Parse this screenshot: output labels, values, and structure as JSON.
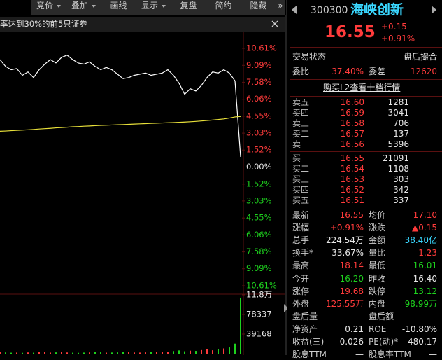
{
  "toolbar": {
    "items": [
      "竞价",
      "叠加",
      "画线",
      "显示",
      "复盘",
      "简约",
      "隐藏"
    ]
  },
  "notice": {
    "text": "率达到30%的前5只证券"
  },
  "chart": {
    "price": {
      "type": "line",
      "ylim": [
        -10.61,
        10.61
      ],
      "yticks": [
        {
          "value": 10.61,
          "label": "10.61%"
        },
        {
          "value": 9.09,
          "label": "9.09%"
        },
        {
          "value": 7.58,
          "label": "7.58%"
        },
        {
          "value": 6.06,
          "label": "6.06%"
        },
        {
          "value": 4.55,
          "label": "4.55%"
        },
        {
          "value": 3.03,
          "label": "3.03%"
        },
        {
          "value": 1.52,
          "label": "1.52%"
        },
        {
          "value": 0,
          "label": "0.00%"
        },
        {
          "value": -1.52,
          "label": "1.52%"
        },
        {
          "value": -3.03,
          "label": "3.03%"
        },
        {
          "value": -4.55,
          "label": "4.55%"
        },
        {
          "value": -6.06,
          "label": "6.06%"
        },
        {
          "value": -7.58,
          "label": "7.58%"
        },
        {
          "value": -9.09,
          "label": "9.09%"
        },
        {
          "value": -10.61,
          "label": "10.61%"
        }
      ],
      "series": [
        {
          "color": "#ffffff",
          "values": [
            9.6,
            9.0,
            8.7,
            8.8,
            8.2,
            8.5,
            8.0,
            8.7,
            9.2,
            9.6,
            9.3,
            9.8,
            10.0,
            9.6,
            9.3,
            9.2,
            9.4,
            9.0,
            8.7,
            8.9,
            8.7,
            8.3,
            7.9,
            8.0,
            8.2,
            8.3,
            8.4,
            8.2,
            8.3,
            8.4,
            8.7,
            8.2,
            7.5,
            6.5,
            7.0,
            6.8,
            7.3,
            8.0,
            8.5,
            8.4,
            8.7,
            8.4,
            7.7,
            0.91
          ]
        },
        {
          "color": "#e8e03a",
          "values": [
            3.2,
            3.22,
            3.25,
            3.28,
            3.3,
            3.33,
            3.36,
            3.4,
            3.43,
            3.46,
            3.5,
            3.53,
            3.56,
            3.6,
            3.62,
            3.65,
            3.67,
            3.7,
            3.72,
            3.74,
            3.76,
            3.78,
            3.8,
            3.82,
            3.84,
            3.86,
            3.88,
            3.9,
            3.92,
            3.94,
            3.96,
            3.98,
            4.0,
            4.02,
            4.05,
            4.08,
            4.12,
            4.16,
            4.2,
            4.25,
            4.3,
            4.38,
            4.48,
            4.52
          ]
        }
      ]
    },
    "volume": {
      "type": "bar",
      "ylim": [
        0,
        117506
      ],
      "yticks": [
        {
          "value": 117506,
          "label": "11.8万"
        },
        78337,
        39168
      ],
      "values": [
        3000,
        2500,
        2000,
        2200,
        1800,
        2500,
        2000,
        3000,
        2800,
        2200,
        2600,
        3100,
        2400,
        2000,
        1800,
        2200,
        2500,
        3000,
        2700,
        2100,
        2300,
        2600,
        3500,
        2800,
        2400,
        2200,
        2600,
        3200,
        3800,
        3000,
        4200,
        5200,
        6500,
        4800,
        6000,
        5500,
        7200,
        9000,
        6800,
        8500,
        10500,
        12500,
        20000,
        112000
      ]
    }
  },
  "quote": {
    "code": "300300",
    "name": "海峡创新",
    "price": "16.55",
    "change": "+0.15",
    "change_pct": "+0.91%"
  },
  "panel": {
    "status_label": "交易状态",
    "status_value": "盘后撮合",
    "ratio_label": "委比",
    "ratio_value": "37.40%",
    "diff_label": "委差",
    "diff_value": "12620",
    "l2_link": "购买L2查看十档行情",
    "asks": [
      {
        "label": "卖五",
        "price": "16.60",
        "volume": "1281"
      },
      {
        "label": "卖四",
        "price": "16.59",
        "volume": "3041"
      },
      {
        "label": "卖三",
        "price": "16.58",
        "volume": "706"
      },
      {
        "label": "卖二",
        "price": "16.57",
        "volume": "137"
      },
      {
        "label": "卖一",
        "price": "16.56",
        "volume": "5396"
      }
    ],
    "bids": [
      {
        "label": "买一",
        "price": "16.55",
        "volume": "21091"
      },
      {
        "label": "买二",
        "price": "16.54",
        "volume": "1108"
      },
      {
        "label": "买三",
        "price": "16.53",
        "volume": "303"
      },
      {
        "label": "买四",
        "price": "16.52",
        "volume": "342"
      },
      {
        "label": "买五",
        "price": "16.51",
        "volume": "337"
      }
    ],
    "book_price_color": "#ff3b3b",
    "stats": [
      [
        {
          "label": "最新",
          "value": "16.55",
          "color": "#ff3b3b"
        },
        {
          "label": "均价",
          "value": "17.10",
          "color": "#ff3b3b"
        }
      ],
      [
        {
          "label": "涨幅",
          "value": "+0.91%",
          "color": "#ff3b3b"
        },
        {
          "label": "涨跌",
          "value": "▲0.15",
          "color": "#ff3b3b"
        }
      ],
      [
        {
          "label": "总手",
          "value": "224.54万",
          "color": "#e6e6e6"
        },
        {
          "label": "金额",
          "value": "38.40亿",
          "color": "#3ad7ff"
        }
      ],
      [
        {
          "label": "换手*",
          "value": "33.67%",
          "color": "#e6e6e6"
        },
        {
          "label": "量比",
          "value": "1.23",
          "color": "#ff3b3b"
        }
      ],
      [
        {
          "label": "最高",
          "value": "18.14",
          "color": "#ff3b3b"
        },
        {
          "label": "最低",
          "value": "16.01",
          "color": "#1ed21e"
        }
      ],
      [
        {
          "label": "今开",
          "value": "16.20",
          "color": "#1ed21e"
        },
        {
          "label": "昨收",
          "value": "16.40",
          "color": "#e6e6e6"
        }
      ],
      [
        {
          "label": "涨停",
          "value": "19.68",
          "color": "#ff3b3b"
        },
        {
          "label": "跌停",
          "value": "13.12",
          "color": "#1ed21e"
        }
      ],
      [
        {
          "label": "外盘",
          "value": "125.55万",
          "color": "#ff3b3b"
        },
        {
          "label": "内盘",
          "value": "98.99万",
          "color": "#1ed21e"
        }
      ],
      [
        {
          "label": "盘后量",
          "value": "—",
          "color": "#e6e6e6"
        },
        {
          "label": "盘后额",
          "value": "—",
          "color": "#e6e6e6"
        }
      ],
      [
        {
          "label": "净资产",
          "value": "0.21",
          "color": "#e6e6e6"
        },
        {
          "label": "ROE",
          "value": "-10.80%",
          "color": "#e6e6e6"
        }
      ],
      [
        {
          "label": "收益(三)",
          "value": "-0.026",
          "color": "#e6e6e6"
        },
        {
          "label": "PE(动)*",
          "value": "-480.17",
          "color": "#e6e6e6"
        }
      ],
      [
        {
          "label": "股息TTM",
          "value": "—",
          "color": "#e6e6e6"
        },
        {
          "label": "股息率TTM",
          "value": "—",
          "color": "#e6e6e6"
        }
      ]
    ]
  }
}
